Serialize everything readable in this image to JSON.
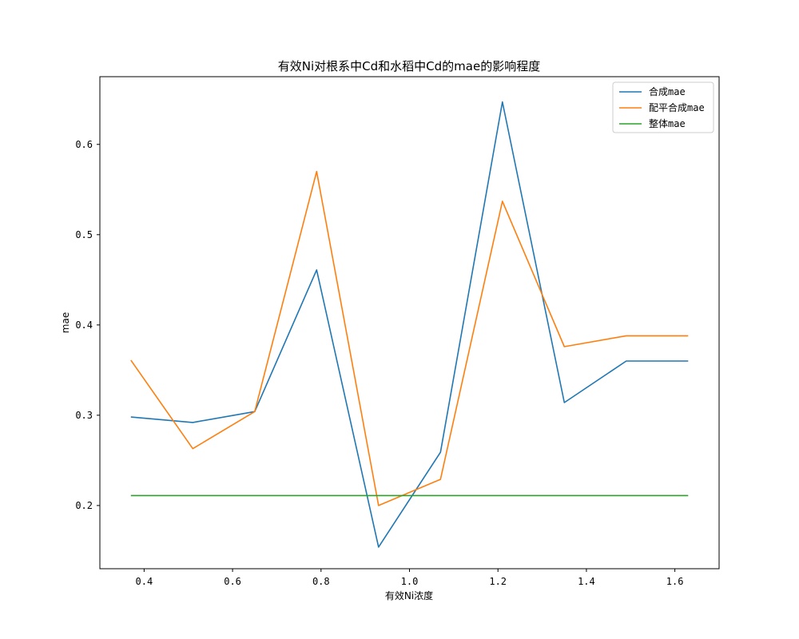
{
  "chart_data": {
    "type": "line",
    "title": "有效Ni对根系中Cd和水稻中Cd的mae的影响程度",
    "xlabel": "有效Ni浓度",
    "ylabel": "mae",
    "xlim": [
      0.3,
      1.7
    ],
    "ylim": [
      0.13,
      0.675
    ],
    "xticks": [
      0.4,
      0.6,
      0.8,
      1.0,
      1.2,
      1.4,
      1.6
    ],
    "xtick_labels": [
      "0.4",
      "0.6",
      "0.8",
      "1.0",
      "1.2",
      "1.4",
      "1.6"
    ],
    "yticks": [
      0.2,
      0.3,
      0.4,
      0.5,
      0.6
    ],
    "ytick_labels": [
      "0.2",
      "0.3",
      "0.4",
      "0.5",
      "0.6"
    ],
    "grid": false,
    "legend_position": "top-right",
    "x": [
      0.37,
      0.51,
      0.65,
      0.79,
      0.93,
      1.07,
      1.21,
      1.35,
      1.49,
      1.63
    ],
    "series": [
      {
        "name": "合成mae",
        "color": "#1f77b4",
        "values": [
          0.298,
          0.292,
          0.304,
          0.461,
          0.154,
          0.259,
          0.647,
          0.314,
          0.36,
          0.36
        ]
      },
      {
        "name": "配平合成mae",
        "color": "#ff7f0e",
        "values": [
          0.361,
          0.263,
          0.304,
          0.57,
          0.2,
          0.229,
          0.537,
          0.376,
          0.388,
          0.388
        ]
      },
      {
        "name": "整体mae",
        "color": "#2ca02c",
        "values": [
          0.211,
          0.211,
          0.211,
          0.211,
          0.211,
          0.211,
          0.211,
          0.211,
          0.211,
          0.211
        ]
      }
    ]
  }
}
